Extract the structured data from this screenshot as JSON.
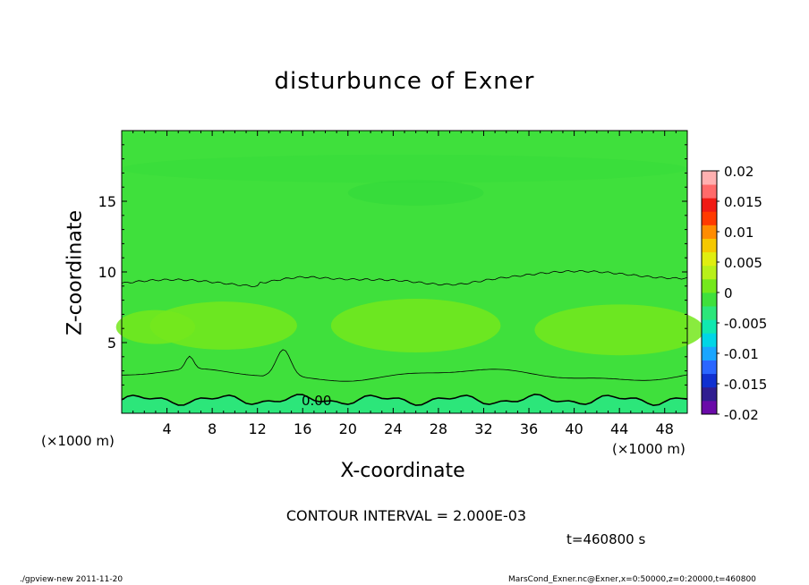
{
  "chart_data": {
    "type": "heatmap",
    "title": "disturbunce of Exner",
    "xlabel": "X-coordinate",
    "ylabel": "Z-coordinate",
    "x_unit_label": "(×1000 m)",
    "xlim": [
      0,
      50
    ],
    "ylim": [
      0,
      20
    ],
    "x_ticks": [
      4,
      8,
      12,
      16,
      20,
      24,
      28,
      32,
      36,
      40,
      44,
      48
    ],
    "y_ticks": [
      5,
      10,
      15
    ],
    "contour_interval_text": "CONTOUR INTERVAL = 2.000E-03",
    "contour_label": "0.00",
    "colorbar": {
      "min": -0.02,
      "max": 0.02,
      "tick_labels": [
        "0.02",
        "0.015",
        "0.01",
        "0.005",
        "0",
        "-0.005",
        "-0.01",
        "-0.015",
        "-0.02"
      ],
      "colors": [
        "#6a0aa8",
        "#301e90",
        "#1030d0",
        "#2a66ff",
        "#1aa6ff",
        "#00d6e6",
        "#10e8b0",
        "#2ce67a",
        "#3fe03c",
        "#74e81c",
        "#b8f01a",
        "#e0ee10",
        "#f5c800",
        "#ff8c00",
        "#ff3a00",
        "#f01a14",
        "#ff6a6a",
        "#ffb0b0"
      ]
    },
    "regions": {
      "background_color": "#3fe03c",
      "positive_patch_color": "#74e81c",
      "negative_color": "#2ce67a"
    },
    "time_label": "t=460800 s"
  },
  "footer": {
    "left": "./gpview-new   2011-11-20",
    "right": "MarsCond_Exner.nc@Exner,x=0:50000,z=0:20000,t=460800"
  }
}
